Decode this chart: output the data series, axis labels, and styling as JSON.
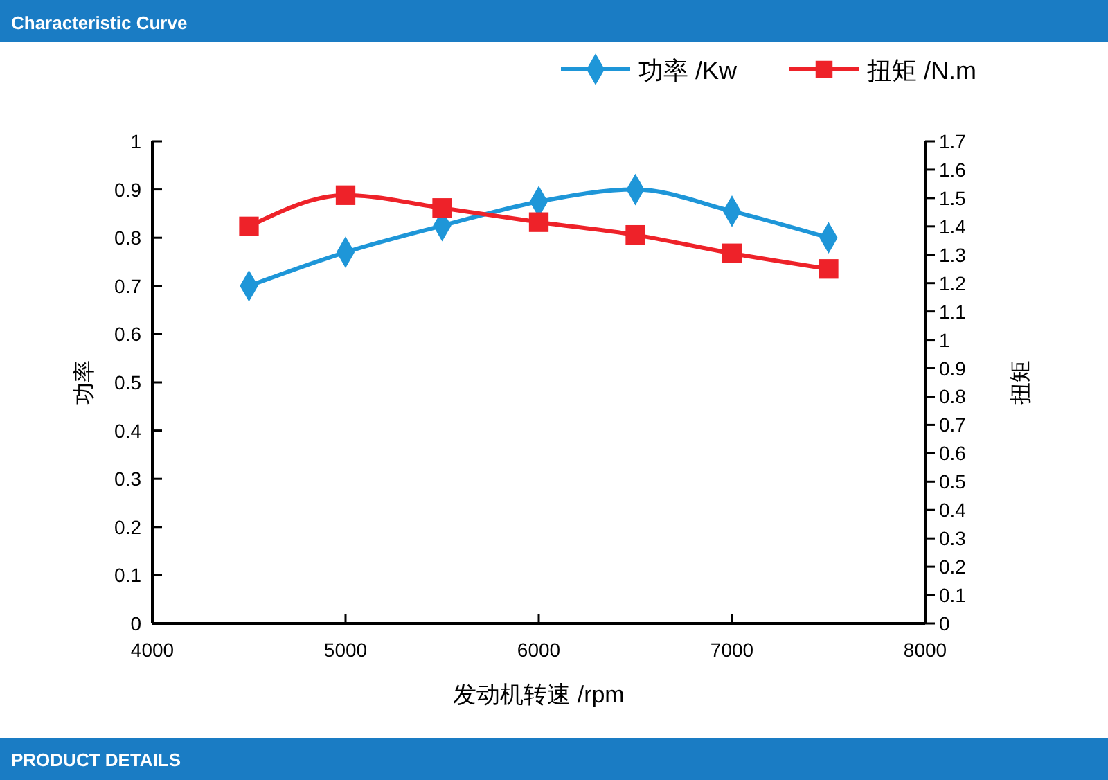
{
  "chart_data": {
    "type": "line",
    "title": "Characteristic Curve",
    "annotations": [
      "PRODUCT DETAILS"
    ],
    "xlabel": "发动机转速 /rpm",
    "ylabel": "功率",
    "y2label": "扭矩",
    "x": [
      4500,
      5000,
      5500,
      6000,
      6500,
      7000,
      7500
    ],
    "series": [
      {
        "name": "功率 /Kw",
        "color": "#1e96d8",
        "marker": "diamond",
        "values": [
          0.7,
          0.77,
          0.825,
          0.875,
          0.9,
          0.855,
          0.8
        ]
      },
      {
        "name": "扭矩 /N.m",
        "color": "#ee2229",
        "marker": "square",
        "axis": "y2",
        "values": [
          1.4,
          1.51,
          1.465,
          1.415,
          1.37,
          1.305,
          1.25
        ]
      }
    ],
    "xlim": [
      4000,
      8000
    ],
    "xticks": [
      4000,
      5000,
      6000,
      7000,
      8000
    ],
    "ylim": [
      0,
      1
    ],
    "yticks": [
      0,
      0.1,
      0.2,
      0.3,
      0.4,
      0.5,
      0.6,
      0.7,
      0.8,
      0.9,
      1
    ],
    "y2lim": [
      0,
      1.7
    ],
    "y2ticks": [
      0,
      0.1,
      0.2,
      0.3,
      0.4,
      0.5,
      0.6,
      0.7,
      0.8,
      0.9,
      1,
      1.1,
      1.2,
      1.3,
      1.4,
      1.5,
      1.6,
      1.7
    ],
    "grid": false,
    "legend": "top right"
  }
}
